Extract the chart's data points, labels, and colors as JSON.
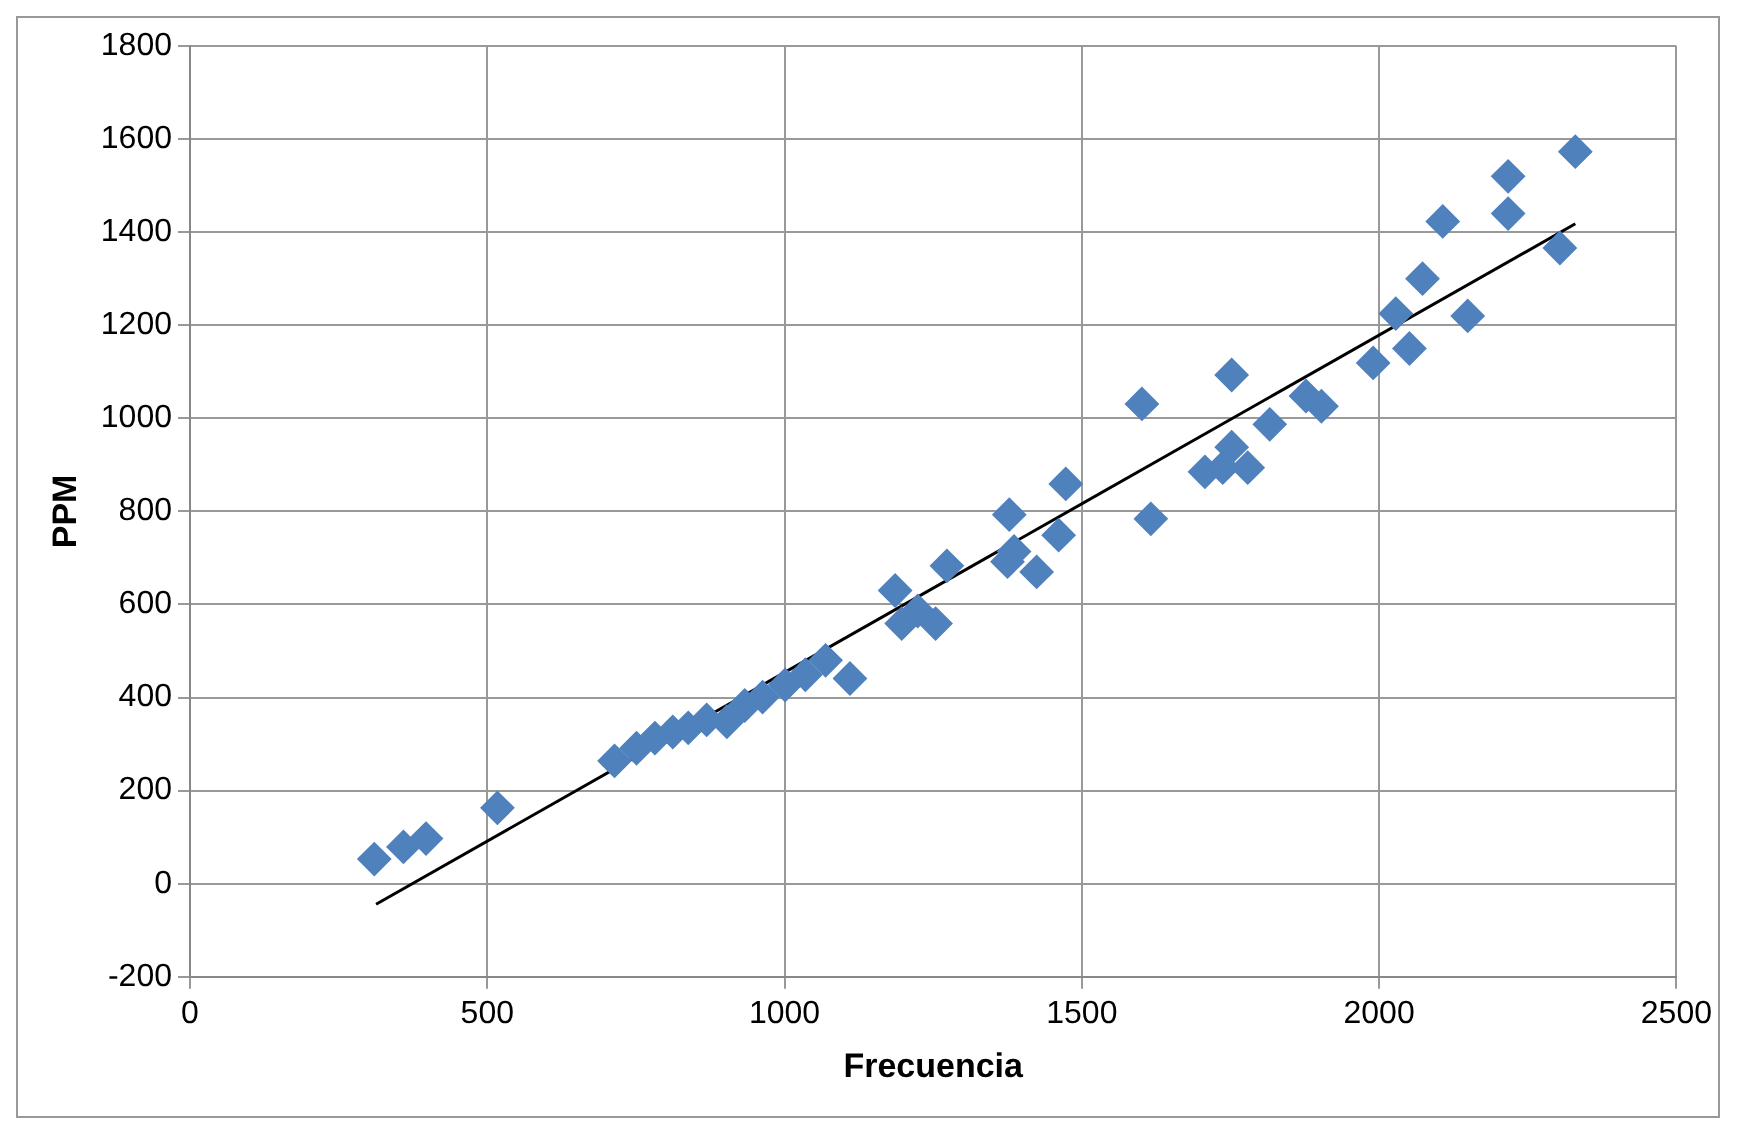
{
  "chart_data": {
    "type": "scatter",
    "xlabel": "Frecuencia",
    "ylabel": "PPM",
    "xlim": [
      0,
      2500
    ],
    "xticks": [
      0,
      500,
      1000,
      1500,
      2000,
      2500
    ],
    "ylim": [
      -200,
      1800
    ],
    "yticks": [
      -200,
      0,
      200,
      400,
      600,
      800,
      1000,
      1200,
      1400,
      1600,
      1800
    ],
    "grid": true,
    "marker": "diamond",
    "series": [
      {
        "color": "#4f81bd",
        "x": [
          310,
          359,
          397,
          517,
          714,
          751,
          782,
          812,
          838,
          869,
          903,
          933,
          963,
          1001,
          1035,
          1069,
          1110,
          1186,
          1197,
          1224,
          1254,
          1273,
          1378,
          1386,
          1375,
          1424,
          1473,
          1461,
          1601,
          1616,
          1752,
          1752,
          1707,
          1737,
          1779,
          1816,
          1877,
          1903,
          1990,
          2028,
          2051,
          2149,
          2107,
          2217,
          2217,
          2330,
          2304,
          2073
        ],
        "values": [
          53,
          79,
          97,
          163,
          264,
          291,
          313,
          326,
          335,
          352,
          348,
          383,
          401,
          427,
          449,
          480,
          441,
          630,
          559,
          586,
          559,
          683,
          793,
          714,
          692,
          670,
          859,
          749,
          1031,
          784,
          1093,
          938,
          885,
          894,
          894,
          987,
          1048,
          1026,
          1119,
          1225,
          1150,
          1220,
          1423,
          1520,
          1440,
          1573,
          1366,
          1300
        ]
      },
      {
        "type": "line",
        "color": "#000000",
        "marker": "none",
        "x": [
          313,
          2330
        ],
        "values": [
          -44,
          1418
        ]
      }
    ]
  }
}
